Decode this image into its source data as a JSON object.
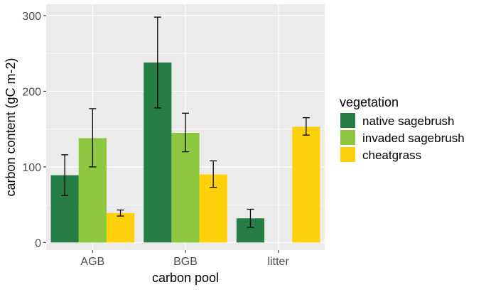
{
  "chart_data": {
    "type": "bar",
    "xlabel": "carbon pool",
    "ylabel": "carbon content (gC m-2)",
    "categories": [
      "AGB",
      "BGB",
      "litter"
    ],
    "ylim": [
      -10,
      315
    ],
    "yticks": [
      0,
      100,
      200,
      300
    ],
    "grid": true,
    "legend": {
      "title": "vegetation",
      "position": "right",
      "items": [
        "native sagebrush",
        "invaded sagebrush",
        "cheatgrass"
      ]
    },
    "series": [
      {
        "name": "native sagebrush",
        "color": "#267d45",
        "values": [
          89,
          238,
          32
        ],
        "error_low": [
          62,
          178,
          20
        ],
        "error_high": [
          116,
          298,
          44
        ]
      },
      {
        "name": "invaded sagebrush",
        "color": "#8dc63f",
        "values": [
          138,
          145,
          null
        ],
        "error_low": [
          100,
          120,
          null
        ],
        "error_high": [
          177,
          171,
          null
        ]
      },
      {
        "name": "cheatgrass",
        "color": "#ffd10a",
        "values": [
          39,
          90,
          153
        ],
        "error_low": [
          35,
          73,
          142
        ],
        "error_high": [
          43,
          108,
          165
        ]
      }
    ]
  }
}
